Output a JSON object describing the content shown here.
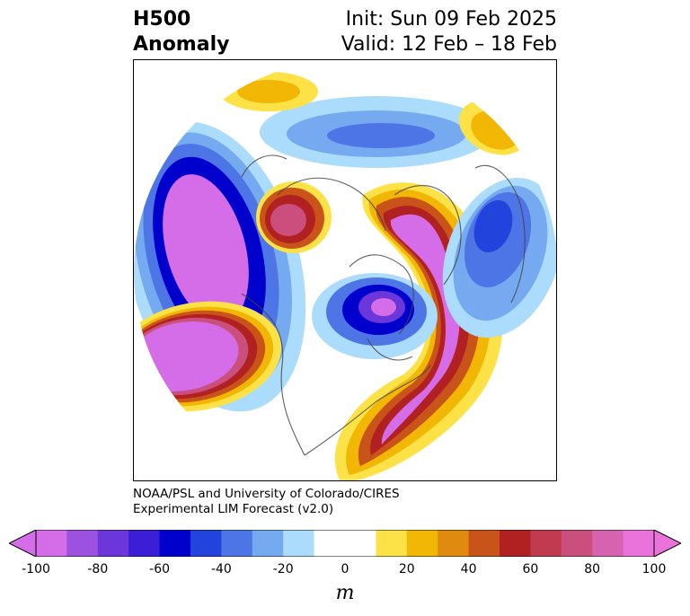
{
  "header": {
    "title_line1": "H500",
    "title_line2": "Anomaly",
    "init": "Init: Sun 09 Feb 2025",
    "valid": "Valid: 12 Feb – 18 Feb"
  },
  "credit": {
    "line1": "NOAA/PSL and University of Colorado/CIRES",
    "line2": "Experimental LIM Forecast (v2.0)"
  },
  "colorbar": {
    "unit": "m",
    "tick_labels": [
      "-100",
      "-80",
      "-60",
      "-40",
      "-20",
      "0",
      "20",
      "40",
      "60",
      "80",
      "100"
    ],
    "min": -100,
    "max": 100,
    "colors": [
      "#d56de8",
      "#9c52df",
      "#6b36da",
      "#3c1ed6",
      "#0000cc",
      "#2343dd",
      "#4d75e6",
      "#76aaf0",
      "#acdcfc",
      "#ffffff",
      "#ffffff",
      "#fde247",
      "#f2b705",
      "#e08b0f",
      "#c95419",
      "#b22122",
      "#c23a4f",
      "#cb4f7c",
      "#d763b0",
      "#ea72db"
    ]
  }
}
